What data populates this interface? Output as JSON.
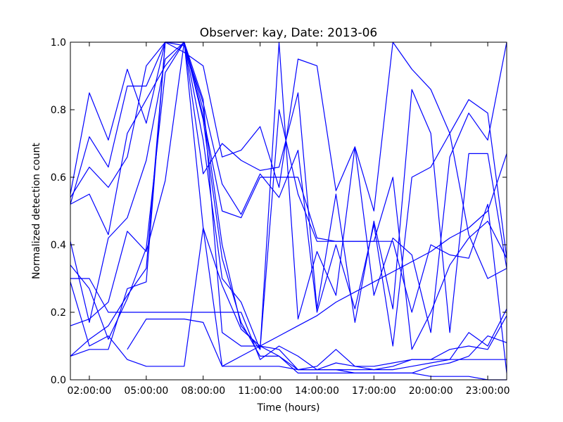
{
  "chart_data": {
    "type": "line",
    "title": "Observer: kay, Date: 2013-06",
    "xlabel": "Time (hours)",
    "ylabel": "Normalized detection count",
    "xlim": [
      1,
      24
    ],
    "ylim": [
      0,
      1
    ],
    "x_ticks": [
      2,
      5,
      8,
      11,
      14,
      17,
      20,
      23
    ],
    "x_tick_labels": [
      "02:00:00",
      "05:00:00",
      "08:00:00",
      "11:00:00",
      "14:00:00",
      "17:00:00",
      "20:00:00",
      "23:00:00"
    ],
    "y_ticks": [
      0,
      0.2,
      0.4,
      0.6,
      0.8,
      1.0
    ],
    "y_tick_labels": [
      "0.0",
      "0.2",
      "0.4",
      "0.6",
      "0.8",
      "1.0"
    ],
    "grid": false,
    "legend": "none",
    "line_color": "#0000ff",
    "x": [
      1,
      2,
      3,
      4,
      5,
      6,
      7,
      8,
      9,
      10,
      11,
      12,
      13,
      14,
      15,
      16,
      17,
      18,
      19,
      20,
      21,
      22,
      23,
      24
    ],
    "series": [
      {
        "values": [
          0.55,
          0.85,
          0.71,
          0.92,
          0.76,
          1.0,
          0.97,
          0.93,
          0.66,
          0.68,
          0.75,
          0.57,
          0.95,
          0.93,
          0.56,
          0.69,
          0.5,
          1.0,
          0.92,
          0.86,
          0.73,
          0.83,
          0.79,
          0.36
        ]
      },
      {
        "values": [
          0.52,
          0.72,
          0.63,
          0.87,
          0.87,
          1.0,
          1.0,
          0.61,
          0.7,
          0.65,
          0.62,
          0.63,
          0.85,
          0.21,
          0.55,
          0.17,
          0.47,
          0.21,
          0.86,
          0.73,
          0.14,
          0.67,
          0.67,
          0.33
        ]
      },
      {
        "values": [
          0.54,
          0.63,
          0.57,
          0.66,
          0.93,
          1.0,
          0.99,
          0.82,
          0.58,
          0.49,
          0.61,
          0.54,
          0.68,
          0.2,
          0.4,
          0.21,
          0.46,
          0.1,
          0.6,
          0.63,
          0.73,
          0.43,
          0.3,
          0.33
        ]
      },
      {
        "values": [
          0.52,
          0.55,
          0.43,
          0.73,
          0.83,
          0.93,
          1.0,
          0.78,
          0.5,
          0.48,
          0.6,
          0.6,
          0.6,
          0.42,
          0.41,
          0.41,
          0.41,
          0.6,
          0.09,
          0.2,
          0.34,
          0.42,
          0.47,
          0.36
        ]
      },
      {
        "values": [
          0.41,
          0.17,
          0.42,
          0.48,
          0.65,
          0.95,
          1.0,
          0.8,
          0.4,
          0.16,
          0.09,
          1.0,
          0.18,
          0.38,
          0.25,
          0.69,
          0.25,
          0.42,
          0.37,
          0.14,
          0.66,
          0.79,
          0.71,
          1.0
        ]
      },
      {
        "values": [
          0.34,
          0.27,
          0.12,
          0.24,
          0.39,
          0.91,
          1.0,
          0.71,
          0.3,
          0.23,
          0.09,
          0.8,
          0.55,
          0.41,
          0.41,
          0.41,
          0.41,
          0.41,
          0.2,
          0.4,
          0.37,
          0.36,
          0.52,
          0.02
        ]
      },
      {
        "values": [
          0.3,
          0.3,
          0.2,
          0.2,
          0.2,
          0.2,
          0.2,
          0.2,
          0.2,
          0.2,
          0.06,
          0.1,
          0.07,
          0.03,
          0.03,
          0.03,
          0.03,
          0.03,
          0.04,
          0.05,
          0.06,
          0.14,
          0.1,
          0.21
        ]
      },
      {
        "values": [
          0.16,
          0.18,
          0.23,
          0.44,
          0.38,
          0.59,
          1.0,
          0.45,
          0.28,
          0.15,
          0.1,
          0.07,
          0.03,
          0.03,
          0.05,
          0.04,
          0.03,
          0.04,
          0.06,
          0.06,
          0.09,
          0.1,
          0.09,
          0.19
        ]
      },
      {
        "values": [
          0.07,
          0.09,
          0.09,
          0.27,
          0.29,
          1.0,
          1.0,
          0.83,
          0.14,
          0.1,
          0.1,
          0.09,
          0.03,
          0.04,
          0.09,
          0.04,
          0.04,
          0.05,
          0.06,
          0.06,
          0.06,
          0.06,
          0.06,
          0.06
        ]
      },
      {
        "values": [
          0.07,
          0.12,
          0.16,
          0.25,
          0.33,
          1.0,
          1.0,
          0.77,
          0.36,
          0.17,
          0.07,
          0.07,
          0.02,
          0.02,
          0.02,
          0.02,
          0.02,
          0.02,
          0.02,
          0.04,
          0.05,
          0.07,
          0.13,
          0.11
        ]
      },
      {
        "values": [
          null,
          null,
          null,
          0.09,
          0.18,
          0.18,
          0.18,
          0.17,
          0.04,
          0.04,
          0.04,
          0.04,
          0.03,
          0.03,
          0.03,
          0.02,
          0.02,
          0.02,
          0.02,
          0.01,
          0.01,
          0.01,
          0.0,
          0.0
        ]
      },
      {
        "values": [
          0.29,
          0.1,
          0.13,
          0.06,
          0.04,
          0.04,
          0.04,
          0.45,
          0.04,
          0.07,
          0.1,
          0.13,
          0.16,
          0.19,
          0.23,
          0.26,
          0.29,
          0.32,
          0.35,
          0.38,
          0.42,
          0.45,
          0.5,
          0.67
        ]
      }
    ]
  }
}
